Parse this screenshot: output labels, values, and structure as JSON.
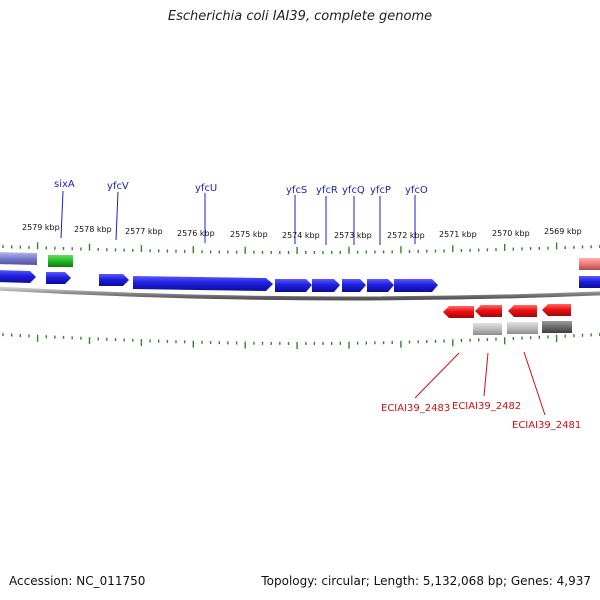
{
  "title": "Escherichia coli IAI39, complete genome",
  "footer": {
    "accession": "Accession: NC_011750",
    "summary": "Topology: circular; Length: 5,132,068 bp; Genes: 4,937"
  },
  "colors": {
    "forward_gene": "#1f1fe0",
    "reverse_gene": "#ee1111",
    "rna_gene": "#22bb22",
    "pseudo_gene": "#8888cc",
    "blue_label": "#1d1dc8",
    "red_label": "#cc1111",
    "tick": "#2a8a2a",
    "backbone": "#8a8a8a"
  },
  "kbp_labels": [
    "2579 kbp",
    "2578 kbp",
    "2577 kbp",
    "2576 kbp",
    "2575 kbp",
    "2574 kbp",
    "2573 kbp",
    "2572 kbp",
    "2571 kbp",
    "2570 kbp",
    "2569 kbp"
  ],
  "top_gene_labels": [
    "sixA",
    "yfcV",
    "yfcU",
    "yfcS",
    "yfcR",
    "yfcQ",
    "yfcP",
    "yfcO"
  ],
  "bottom_gene_labels": [
    "ECIAI39_2483",
    "ECIAI39_2482",
    "ECIAI39_2481"
  ]
}
